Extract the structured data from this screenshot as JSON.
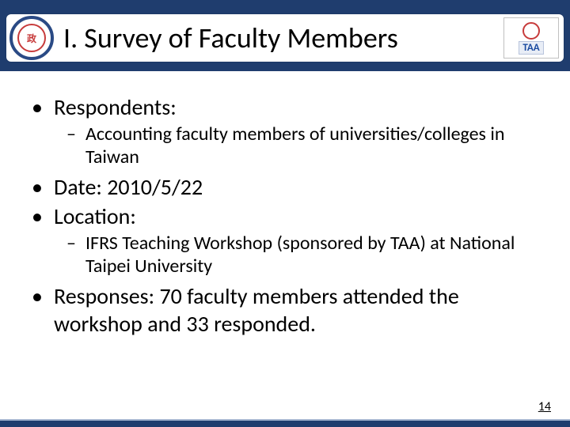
{
  "colors": {
    "band": "#1f3d6e",
    "accent_red": "#c73b3b",
    "text": "#000000",
    "background": "#ffffff"
  },
  "header": {
    "title": "I. Survey of Faculty Members",
    "title_fontsize": 36,
    "logo_right_text": "TAA"
  },
  "bullets": [
    {
      "level": 1,
      "text": "Respondents:"
    },
    {
      "level": 2,
      "text": "Accounting faculty members of universities/colleges in Taiwan"
    },
    {
      "level": 1,
      "text": "Date: 2010/5/22"
    },
    {
      "level": 1,
      "text": "Location:"
    },
    {
      "level": 2,
      "text": "IFRS Teaching Workshop (sponsored by TAA) at National Taipei University"
    },
    {
      "level": 1,
      "text": "Responses: 70 faculty members attended the workshop and 33 responded."
    }
  ],
  "page_number": "14",
  "typography": {
    "level1_fontsize": 28,
    "level2_fontsize": 24,
    "level1_marker": "•",
    "level2_marker": "–"
  }
}
